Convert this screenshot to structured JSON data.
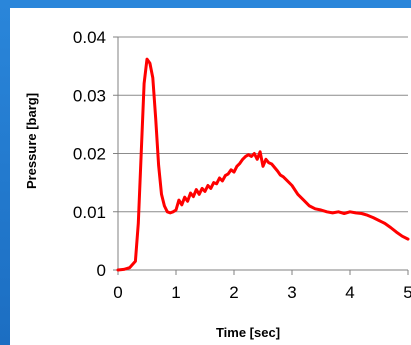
{
  "chart_data": {
    "type": "line",
    "title": "",
    "xlabel": "Time [sec]",
    "ylabel": "Pressure [barg]",
    "xlim": [
      0,
      5
    ],
    "ylim": [
      0,
      0.04
    ],
    "x_ticks": [
      "0",
      "1",
      "2",
      "3",
      "4",
      "5"
    ],
    "y_ticks": [
      "0",
      "0.01",
      "0.02",
      "0.03",
      "0.04"
    ],
    "grid": "horizontal",
    "legend": "none",
    "series": [
      {
        "color": "#ff0000",
        "x": [
          0.0,
          0.1,
          0.2,
          0.3,
          0.35,
          0.4,
          0.45,
          0.5,
          0.55,
          0.6,
          0.65,
          0.7,
          0.75,
          0.8,
          0.85,
          0.9,
          0.95,
          1.0,
          1.05,
          1.1,
          1.15,
          1.2,
          1.25,
          1.3,
          1.35,
          1.4,
          1.45,
          1.5,
          1.55,
          1.6,
          1.65,
          1.7,
          1.75,
          1.8,
          1.85,
          1.9,
          1.95,
          2.0,
          2.05,
          2.1,
          2.15,
          2.2,
          2.25,
          2.3,
          2.35,
          2.4,
          2.45,
          2.5,
          2.55,
          2.6,
          2.65,
          2.7,
          2.75,
          2.8,
          2.85,
          2.9,
          3.0,
          3.1,
          3.2,
          3.3,
          3.4,
          3.5,
          3.6,
          3.7,
          3.8,
          3.9,
          4.0,
          4.1,
          4.2,
          4.3,
          4.4,
          4.5,
          4.6,
          4.7,
          4.8,
          4.9,
          5.0
        ],
        "y": [
          0.0,
          0.0001,
          0.0004,
          0.0015,
          0.008,
          0.02,
          0.032,
          0.0362,
          0.0355,
          0.033,
          0.026,
          0.018,
          0.013,
          0.011,
          0.01,
          0.0098,
          0.01,
          0.0103,
          0.012,
          0.0112,
          0.0125,
          0.0118,
          0.0132,
          0.0126,
          0.0138,
          0.013,
          0.014,
          0.0135,
          0.0145,
          0.014,
          0.015,
          0.0148,
          0.0158,
          0.0153,
          0.0162,
          0.0165,
          0.0172,
          0.0168,
          0.0178,
          0.0183,
          0.019,
          0.0195,
          0.0198,
          0.0195,
          0.02,
          0.019,
          0.0203,
          0.0178,
          0.019,
          0.0184,
          0.0182,
          0.0176,
          0.017,
          0.0163,
          0.016,
          0.0155,
          0.0145,
          0.013,
          0.012,
          0.011,
          0.0105,
          0.0103,
          0.01,
          0.0098,
          0.01,
          0.0097,
          0.01,
          0.0098,
          0.0097,
          0.0094,
          0.009,
          0.0085,
          0.008,
          0.0073,
          0.0065,
          0.0058,
          0.0053
        ]
      }
    ]
  }
}
